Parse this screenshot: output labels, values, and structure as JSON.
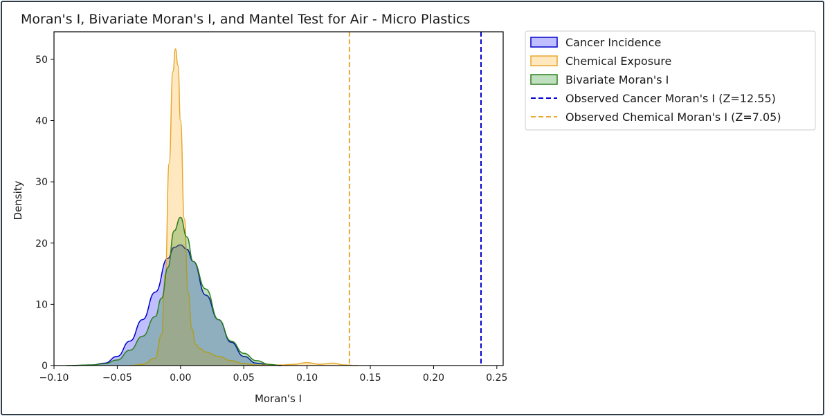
{
  "chart_data": {
    "type": "area",
    "title": "Moran's I, Bivariate Moran's I, and Mantel Test for Air - Micro Plastics",
    "xlabel": "Moran's I",
    "ylabel": "Density",
    "xlim": [
      -0.1,
      0.255
    ],
    "ylim": [
      0,
      54.5
    ],
    "xticks": [
      -0.1,
      -0.05,
      0.0,
      0.05,
      0.1,
      0.15,
      0.2,
      0.25
    ],
    "xtick_labels": [
      "−0.10",
      "−0.05",
      "0.00",
      "0.05",
      "0.10",
      "0.15",
      "0.20",
      "0.25"
    ],
    "yticks": [
      0,
      10,
      20,
      30,
      40,
      50
    ],
    "ytick_labels": [
      "0",
      "10",
      "20",
      "30",
      "40",
      "50"
    ],
    "grid": false,
    "legend_position": "outside-upper-right",
    "series": [
      {
        "name": "Cancer Incidence",
        "kind": "kde",
        "color": "#0000cc",
        "fill": "#0000ff",
        "fill_opacity": 0.25,
        "x": [
          -0.085,
          -0.07,
          -0.06,
          -0.05,
          -0.04,
          -0.03,
          -0.02,
          -0.01,
          -0.005,
          0.0,
          0.005,
          0.01,
          0.02,
          0.03,
          0.04,
          0.05,
          0.06,
          0.07,
          0.08
        ],
        "y": [
          0,
          0.1,
          0.4,
          1.5,
          4.0,
          7.5,
          12.0,
          17.5,
          19.3,
          19.7,
          19.0,
          17.0,
          11.5,
          7.5,
          3.8,
          1.5,
          0.4,
          0.1,
          0
        ]
      },
      {
        "name": "Chemical Exposure",
        "kind": "kde",
        "color": "#e6a82e",
        "fill": "#ffa500",
        "fill_opacity": 0.25,
        "x": [
          -0.04,
          -0.03,
          -0.02,
          -0.015,
          -0.012,
          -0.009,
          -0.006,
          -0.004,
          -0.002,
          0.0,
          0.003,
          0.006,
          0.009,
          0.012,
          0.015,
          0.02,
          0.03,
          0.04,
          0.05,
          0.06,
          0.07,
          0.08,
          0.09,
          0.1,
          0.11,
          0.12,
          0.13,
          0.14
        ],
        "y": [
          0,
          0.2,
          1.2,
          5.0,
          15.0,
          33.0,
          48.0,
          51.7,
          49.0,
          40.0,
          24.0,
          12.0,
          6.0,
          3.5,
          2.8,
          2.2,
          1.5,
          0.8,
          0.3,
          0.1,
          0.1,
          0.1,
          0.2,
          0.5,
          0.2,
          0.4,
          0.1,
          0
        ]
      },
      {
        "name": "Bivariate Moran's I",
        "kind": "kde",
        "color": "#2e7d1e",
        "fill": "#008000",
        "fill_opacity": 0.25,
        "x": [
          -0.09,
          -0.07,
          -0.06,
          -0.05,
          -0.04,
          -0.03,
          -0.02,
          -0.015,
          -0.01,
          -0.005,
          0.0,
          0.005,
          0.01,
          0.02,
          0.03,
          0.04,
          0.05,
          0.06,
          0.07,
          0.08
        ],
        "y": [
          0,
          0.1,
          0.3,
          0.9,
          2.5,
          4.8,
          8.0,
          11.0,
          16.0,
          22.0,
          24.2,
          21.0,
          17.0,
          12.5,
          7.5,
          4.0,
          2.0,
          0.8,
          0.2,
          0
        ]
      },
      {
        "name": "Observed Cancer Moran's I (Z=12.55)",
        "kind": "vline",
        "x": 0.2375,
        "color": "#0000cc",
        "dash": "dashed"
      },
      {
        "name": "Observed Chemical Moran's I (Z=7.05)",
        "kind": "vline",
        "x": 0.1335,
        "color": "#e6a82e",
        "dash": "dashed"
      }
    ]
  }
}
